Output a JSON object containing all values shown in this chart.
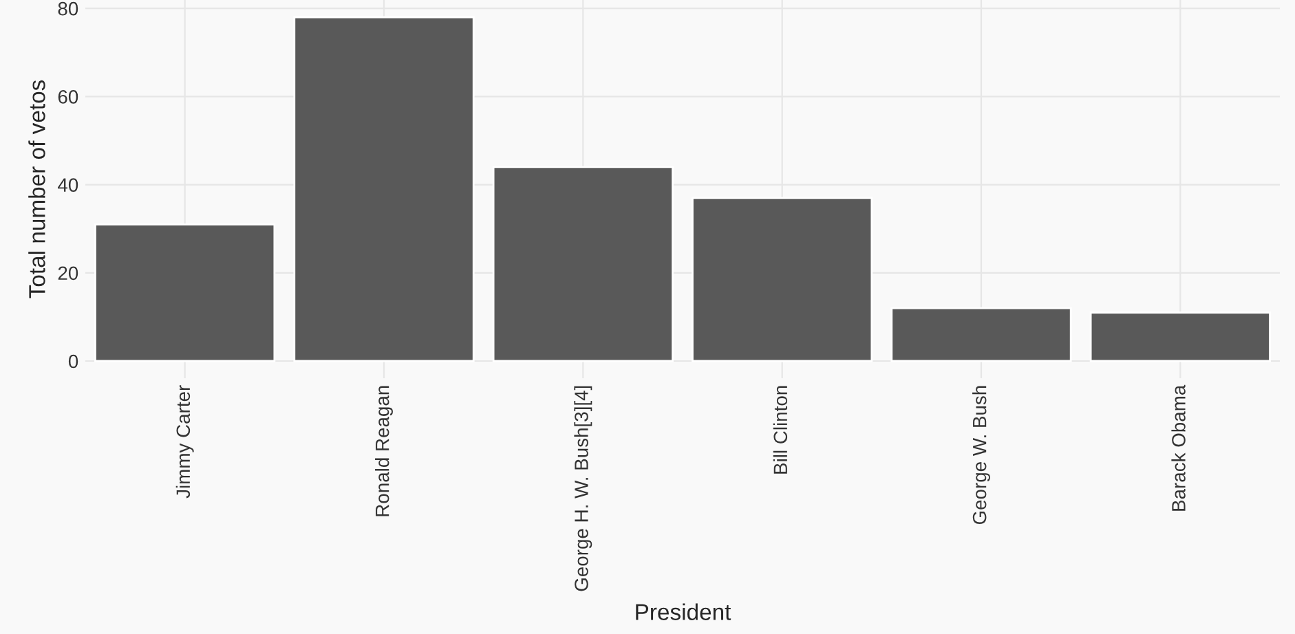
{
  "chart_data": {
    "type": "bar",
    "xlabel": "President",
    "ylabel": "Total number of vetos",
    "categories": [
      "Jimmy Carter",
      "Ronald Reagan",
      "George H. W. Bush[3][4]",
      "Bill Clinton",
      "George W. Bush",
      "Barack Obama"
    ],
    "values": [
      31,
      78,
      44,
      37,
      12,
      11
    ],
    "color": "#595959",
    "ylim": [
      -3.9,
      81.9
    ],
    "yticks": [
      0,
      20,
      40,
      60,
      80
    ],
    "grid": true
  }
}
